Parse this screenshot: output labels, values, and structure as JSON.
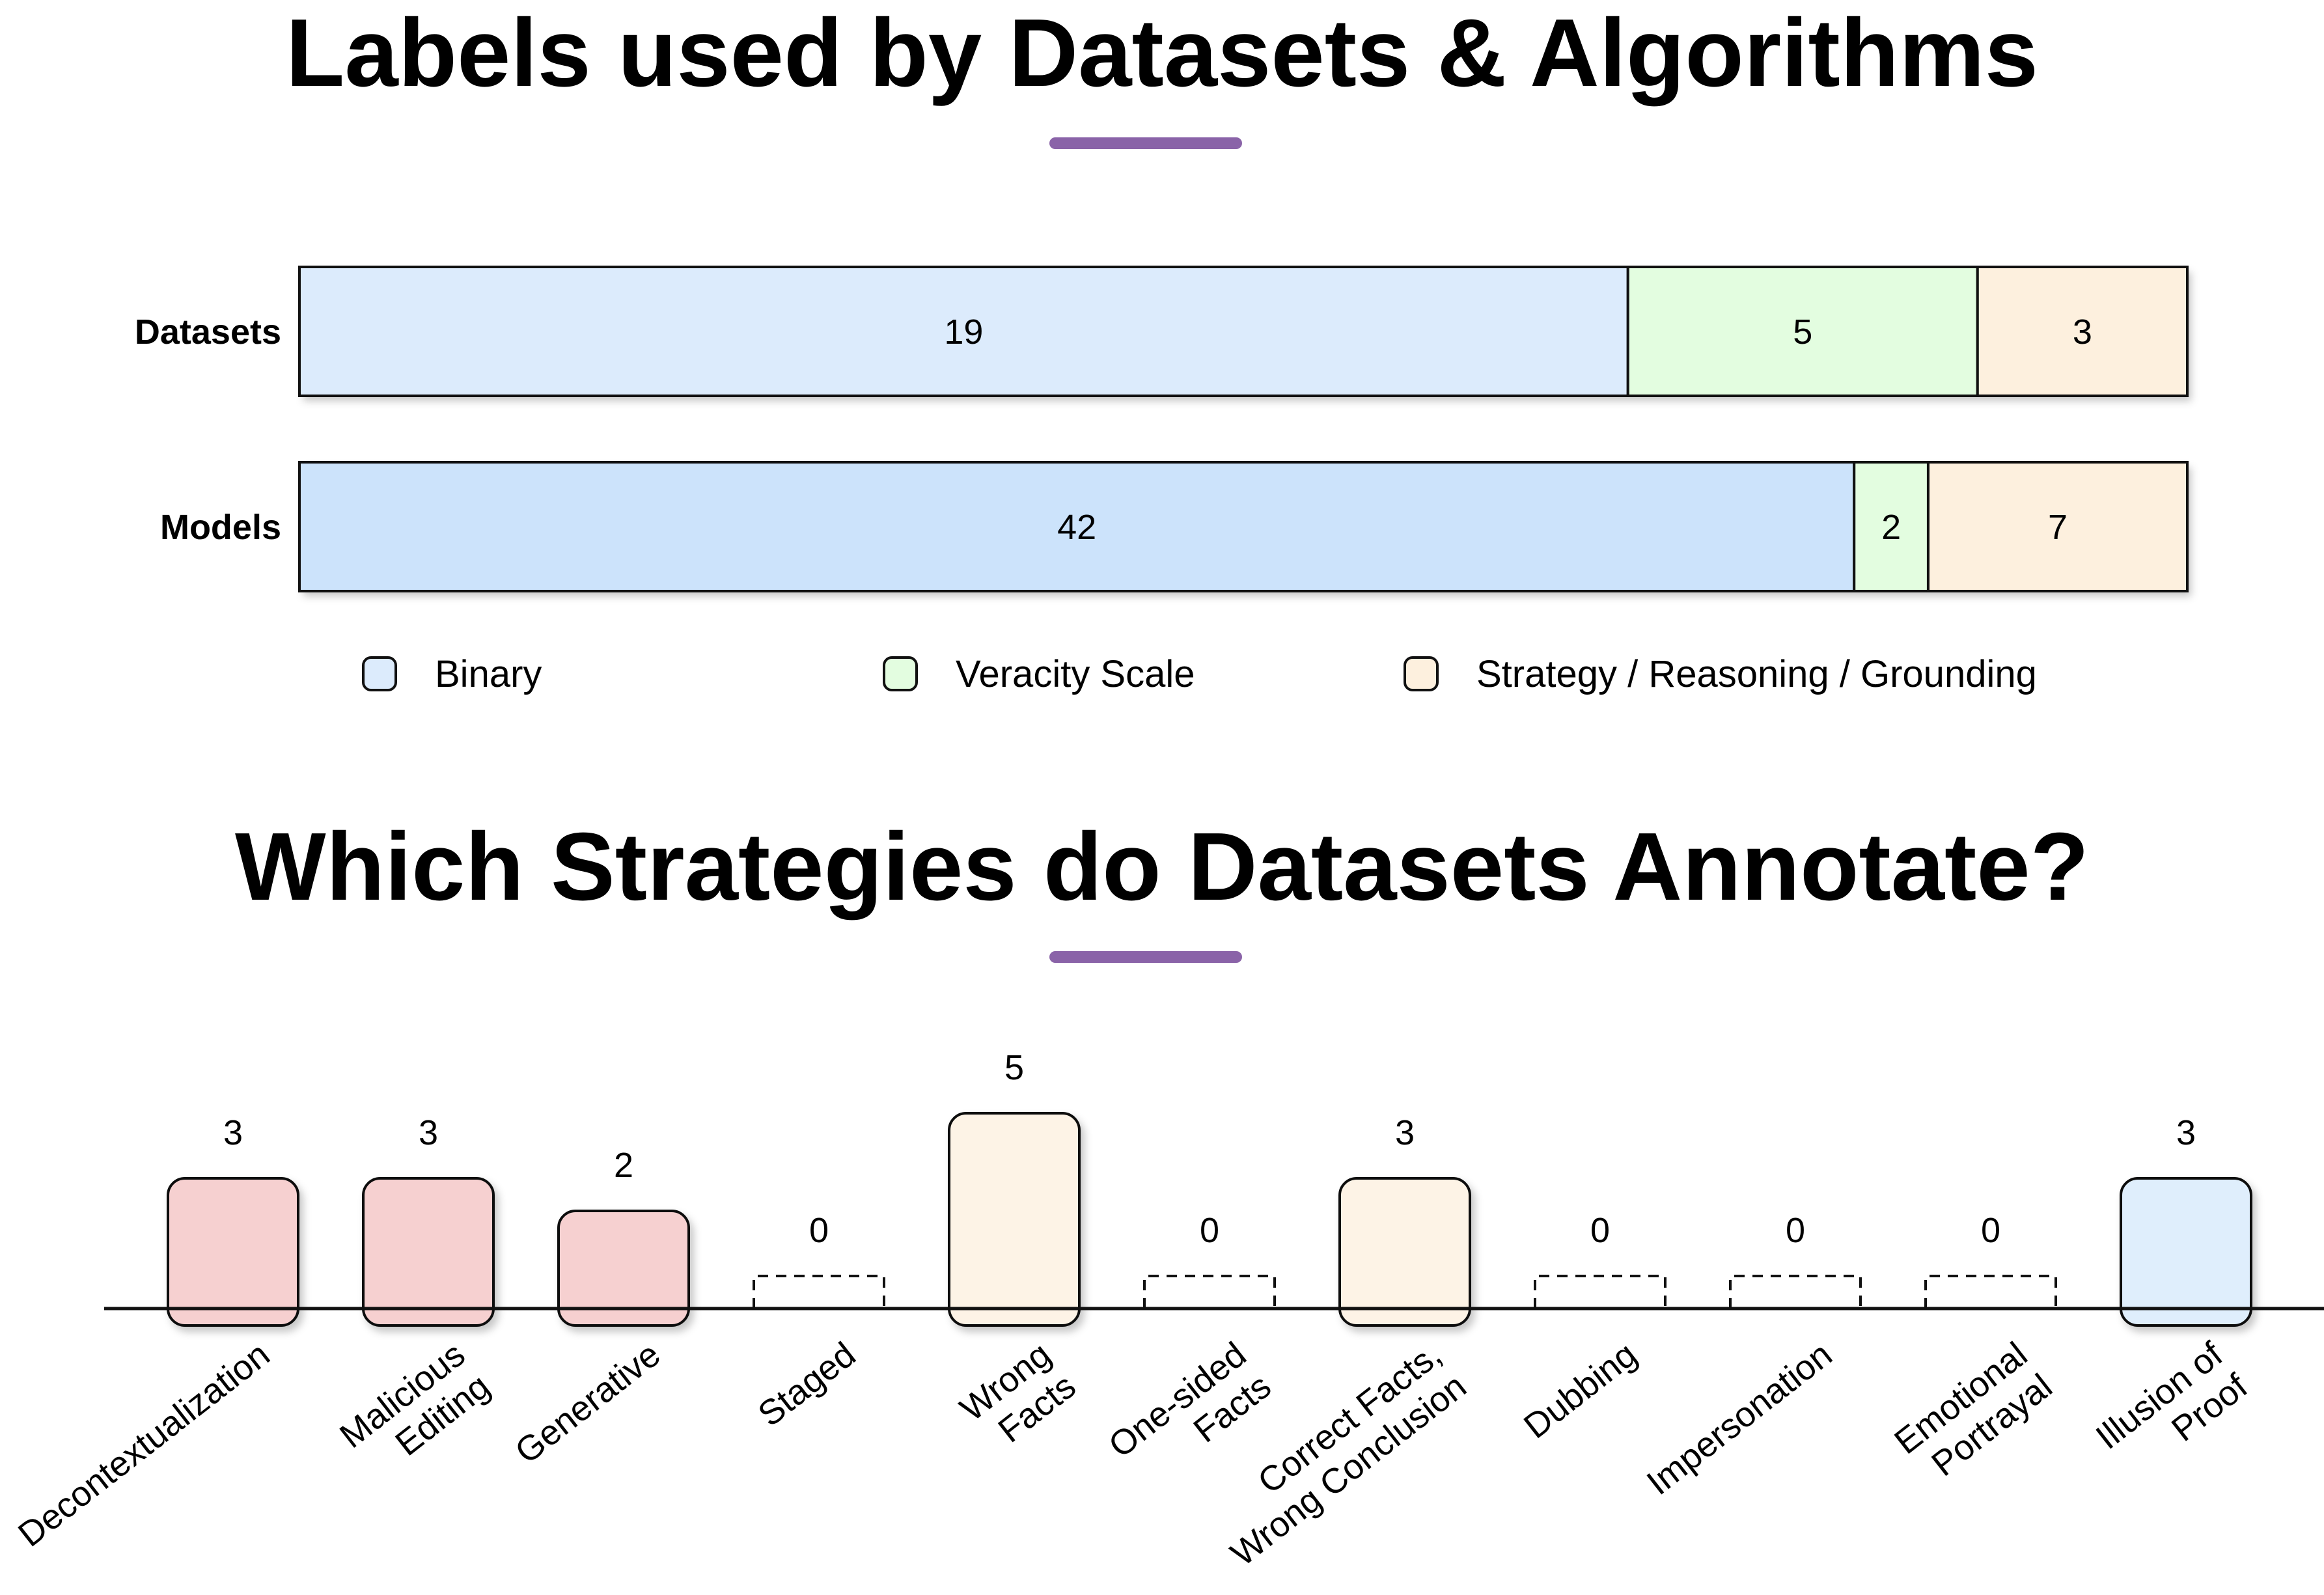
{
  "colors": {
    "binary": "#dcebfc",
    "binary_models": "#cce3fb",
    "veracity": "#e3fde0",
    "strategy": "#fdf0de",
    "red": "#f6d0d0",
    "peach": "#fdf3e6",
    "blue": "#dfeefc",
    "accent": "#8a63a8"
  },
  "chart_data": [
    {
      "type": "bar",
      "orientation": "horizontal",
      "stacked": true,
      "title": "Labels used by Datasets & Algorithms",
      "categories": [
        "Datasets",
        "Models"
      ],
      "series": [
        {
          "name": "Binary",
          "values": [
            19,
            42
          ],
          "color": "#dcebfc"
        },
        {
          "name": "Veracity Scale",
          "values": [
            5,
            2
          ],
          "color": "#e3fde0"
        },
        {
          "name": "Strategy / Reasoning / Grounding",
          "values": [
            3,
            7
          ],
          "color": "#fdf0de"
        }
      ],
      "legend_position": "bottom",
      "grid": false
    },
    {
      "type": "bar",
      "title": "Which Strategies do Datasets Annotate?",
      "categories": [
        "Decontextualization",
        "Malicious\nEditing",
        "Generative",
        "Staged",
        "Wrong\nFacts",
        "One-sided\nFacts",
        "Correct Facts,\nWrong Conclusion",
        "Dubbing",
        "Impersonation",
        "Emotional\nPortrayal",
        "Illusion of\nProof"
      ],
      "values": [
        3,
        3,
        2,
        0,
        5,
        0,
        3,
        0,
        0,
        0,
        3
      ],
      "group_colors": [
        "red",
        "red",
        "red",
        "red",
        "peach",
        "peach",
        "peach",
        "blue",
        "blue",
        "blue",
        "blue"
      ],
      "ylim": [
        0,
        5
      ],
      "grid": false
    }
  ]
}
